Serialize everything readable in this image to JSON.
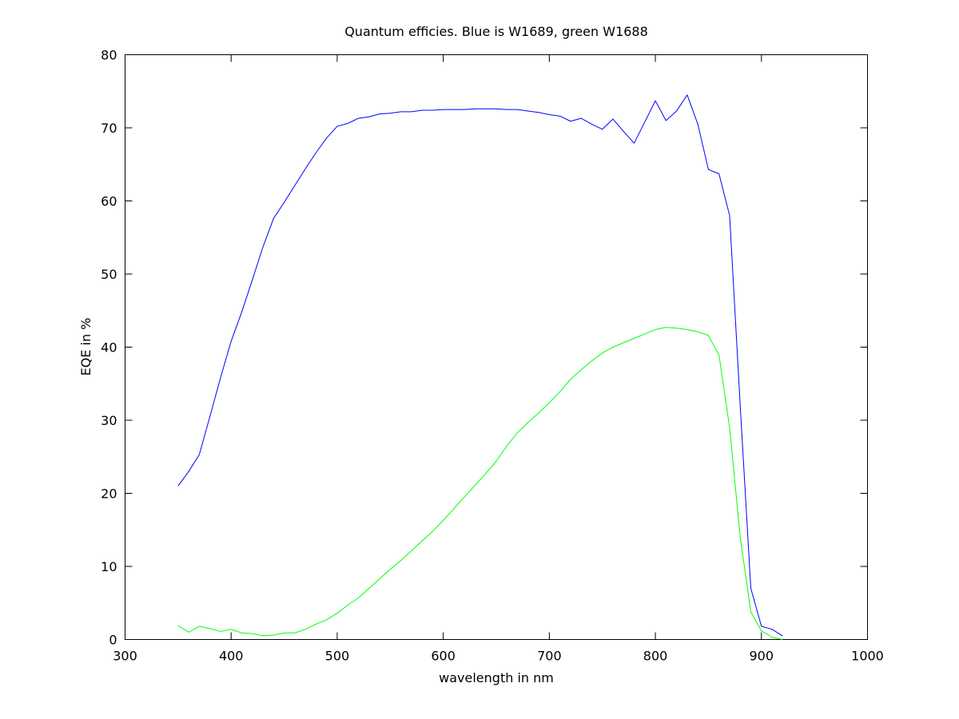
{
  "chart_data": {
    "type": "line",
    "title": "Quantum efficies. Blue is W1689, green W1688",
    "xlabel": "wavelength in nm",
    "ylabel": "EQE in %",
    "xlim": [
      300,
      1000
    ],
    "ylim": [
      0,
      80
    ],
    "xticks": [
      300,
      400,
      500,
      600,
      700,
      800,
      900,
      1000
    ],
    "yticks": [
      0,
      10,
      20,
      30,
      40,
      50,
      60,
      70,
      80
    ],
    "grid": false,
    "legend": "none",
    "series": [
      {
        "color": "#0000ff",
        "x": [
          350,
          360,
          370,
          380,
          390,
          400,
          410,
          420,
          430,
          440,
          450,
          460,
          470,
          480,
          490,
          500,
          510,
          520,
          530,
          540,
          550,
          560,
          570,
          580,
          590,
          600,
          610,
          620,
          630,
          640,
          650,
          660,
          670,
          680,
          690,
          700,
          710,
          720,
          730,
          740,
          750,
          760,
          770,
          780,
          790,
          800,
          810,
          820,
          830,
          840,
          850,
          860,
          870,
          880,
          890,
          900,
          910,
          920
        ],
        "y": [
          21.0,
          23.0,
          25.3,
          30.5,
          35.8,
          40.8,
          44.8,
          49.2,
          53.7,
          57.6,
          59.8,
          62.1,
          64.4,
          66.6,
          68.6,
          70.2,
          70.6,
          71.3,
          71.5,
          71.9,
          72.0,
          72.2,
          72.2,
          72.4,
          72.4,
          72.5,
          72.5,
          72.5,
          72.6,
          72.6,
          72.6,
          72.5,
          72.5,
          72.3,
          72.1,
          71.8,
          71.6,
          70.9,
          71.3,
          70.5,
          69.8,
          71.2,
          69.5,
          67.9,
          70.8,
          73.7,
          71.0,
          72.3,
          74.5,
          70.5,
          64.3,
          63.7,
          58.0,
          32.0,
          7.0,
          1.8,
          1.4,
          0.5
        ]
      },
      {
        "color": "#00ff00",
        "x": [
          350,
          360,
          370,
          380,
          390,
          400,
          410,
          420,
          430,
          440,
          450,
          460,
          470,
          480,
          490,
          500,
          510,
          520,
          530,
          540,
          550,
          560,
          570,
          580,
          590,
          600,
          610,
          620,
          630,
          640,
          650,
          660,
          670,
          680,
          690,
          700,
          710,
          720,
          730,
          740,
          750,
          760,
          770,
          780,
          790,
          800,
          810,
          820,
          830,
          840,
          850,
          860,
          870,
          880,
          890,
          900,
          910,
          920
        ],
        "y": [
          1.9,
          1.0,
          1.8,
          1.5,
          1.1,
          1.4,
          0.9,
          0.8,
          0.5,
          0.6,
          0.9,
          0.9,
          1.4,
          2.1,
          2.7,
          3.6,
          4.7,
          5.7,
          7.0,
          8.3,
          9.6,
          10.8,
          12.1,
          13.5,
          14.8,
          16.3,
          17.9,
          19.5,
          21.1,
          22.7,
          24.4,
          26.5,
          28.3,
          29.7,
          31.0,
          32.4,
          33.9,
          35.6,
          36.9,
          38.1,
          39.2,
          40.0,
          40.6,
          41.2,
          41.8,
          42.4,
          42.7,
          42.6,
          42.4,
          42.1,
          41.6,
          38.9,
          29.0,
          14.0,
          3.8,
          1.2,
          0.3,
          0.0
        ]
      }
    ]
  }
}
